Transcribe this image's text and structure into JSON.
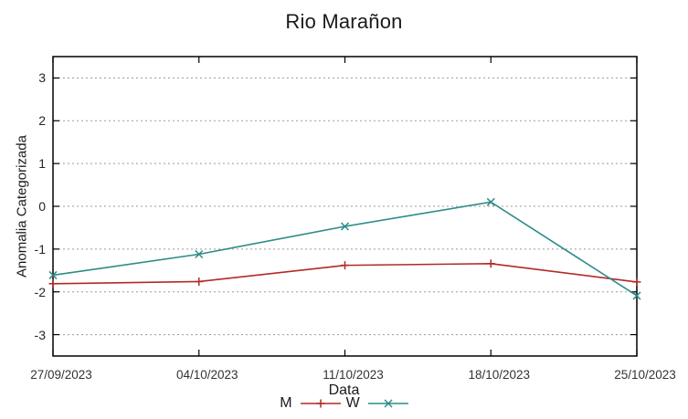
{
  "chart_data": {
    "type": "line",
    "title": "Rio Marañon",
    "xlabel": "Data",
    "ylabel": "Anomalia Categorizada",
    "categories": [
      "27/09/2023",
      "04/10/2023",
      "11/10/2023",
      "18/10/2023",
      "25/10/2023"
    ],
    "series": [
      {
        "name": "M",
        "color": "#b22a25",
        "marker": "plus",
        "values": [
          -1.81,
          -1.76,
          -1.38,
          -1.34,
          -1.77
        ]
      },
      {
        "name": "W",
        "color": "#2e8b88",
        "marker": "cross",
        "values": [
          -1.61,
          -1.12,
          -0.47,
          0.1,
          -2.09
        ]
      }
    ],
    "ylim": [
      -3.5,
      3.5
    ],
    "yticks": [
      3,
      2,
      1,
      0,
      -1,
      -2,
      -3
    ],
    "grid": "horizontal-dotted",
    "grid_color": "#9a9a9a",
    "axis_color": "#000000",
    "background": "#ffffff",
    "legend_position": "bottom-center"
  }
}
